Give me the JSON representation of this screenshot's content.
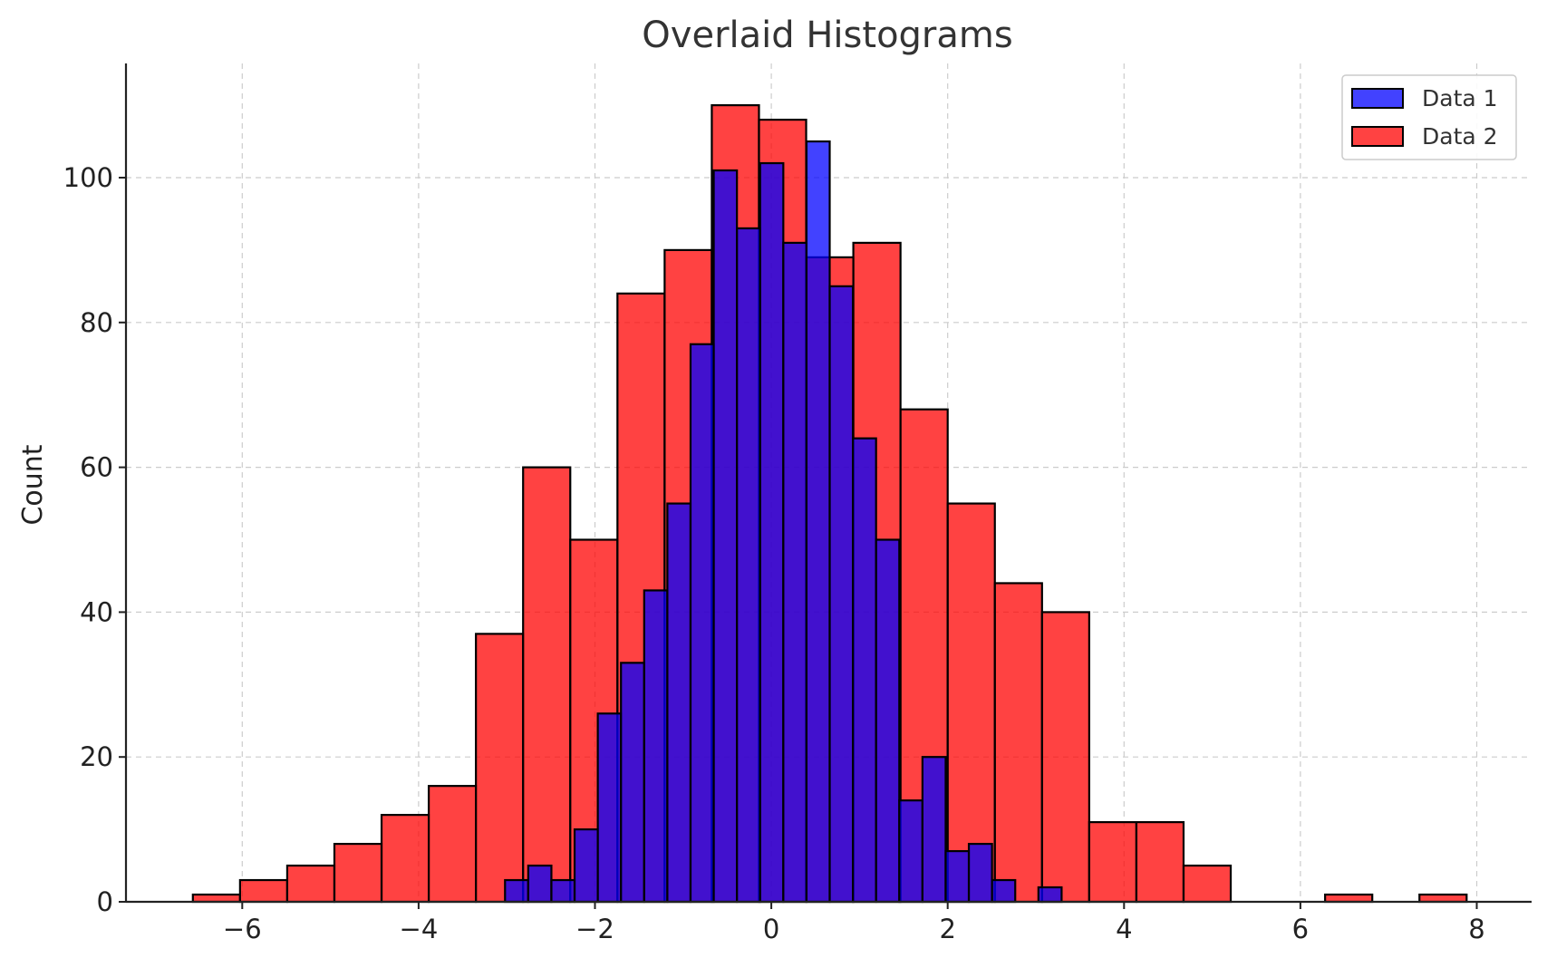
{
  "chart_data": {
    "type": "histogram",
    "title": "Overlaid Histograms",
    "xlabel": "",
    "ylabel": "Count",
    "xlim": [
      -7.0,
      8.6
    ],
    "ylim": [
      0,
      115.5
    ],
    "x_ticks": [
      -6,
      -4,
      -2,
      0,
      2,
      4,
      6,
      8
    ],
    "x_tick_labels": [
      "−6",
      "−4",
      "−2",
      "0",
      "2",
      "4",
      "6",
      "8"
    ],
    "y_ticks": [
      0,
      20,
      40,
      60,
      80,
      100
    ],
    "y_tick_labels": [
      "0",
      "20",
      "40",
      "60",
      "80",
      "100"
    ],
    "grid": true,
    "legend_position": "top-right",
    "series": [
      {
        "name": "Data 1",
        "color": "#0000ff",
        "bin_start": -3.02,
        "bin_width": 0.263,
        "counts": [
          3,
          5,
          3,
          10,
          26,
          33,
          43,
          55,
          77,
          101,
          93,
          102,
          91,
          105,
          85,
          64,
          50,
          14,
          20,
          7,
          8,
          3,
          0,
          2
        ]
      },
      {
        "name": "Data 2",
        "color": "#ff0000",
        "bin_start": -6.56,
        "bin_width": 0.535,
        "counts": [
          1,
          3,
          5,
          8,
          12,
          16,
          37,
          60,
          50,
          84,
          90,
          110,
          108,
          89,
          91,
          68,
          55,
          44,
          40,
          11,
          11,
          5,
          0,
          0,
          1,
          0,
          1
        ]
      }
    ]
  }
}
